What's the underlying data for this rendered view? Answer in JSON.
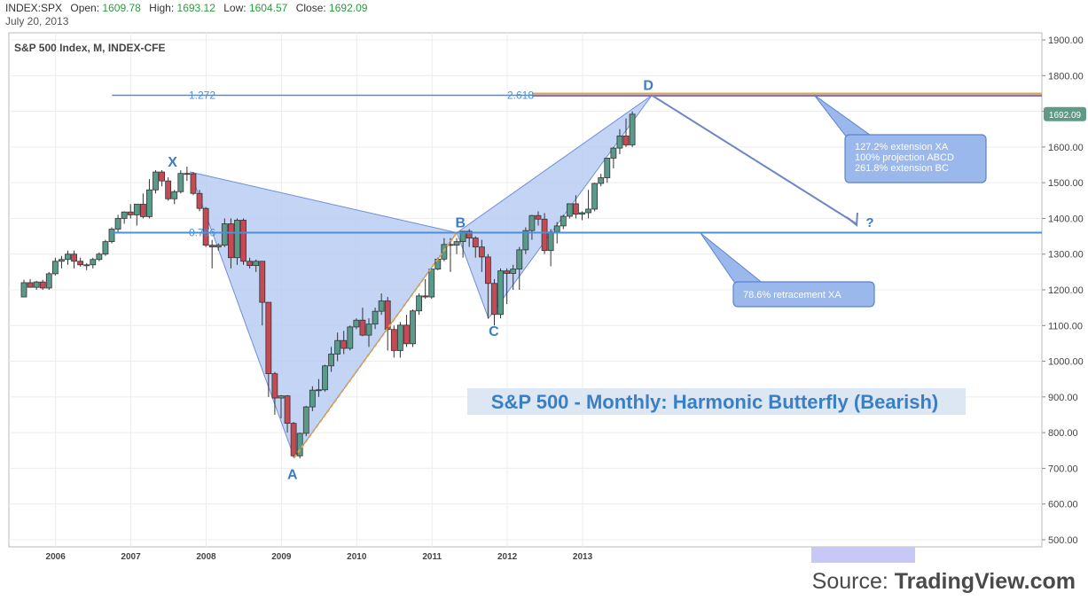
{
  "header": {
    "symbol": "INDEX:SPX",
    "open_label": "Open:",
    "open": "1609.78",
    "high_label": "High:",
    "high": "1693.12",
    "low_label": "Low:",
    "low": "1604.57",
    "close_label": "Close:",
    "close": "1692.09",
    "date": "July 20, 2013"
  },
  "source": {
    "prefix": "Source: ",
    "name": "TradingView.com"
  },
  "colors": {
    "up": "#5a9a8a",
    "down": "#c64a55",
    "pattern_fill": "#b8ccf2",
    "pattern_stroke": "#6d8fd6",
    "level_line": "#4a90d9",
    "ext_line_orange": "#e8a33c",
    "callout_fill": "#9ab8ec",
    "title_bg": "#dde6f3",
    "title_text": "#3a7fc4",
    "price_badge": "#5e9a86"
  },
  "chart_data": {
    "type": "candlestick",
    "title": "S&P 500 Index, M, INDEX-CFE",
    "annotation_title": "S&P 500 - Monthly: Harmonic Butterfly (Bearish)",
    "ylim": [
      480,
      1920
    ],
    "y_ticks": [
      "500.00",
      "600.00",
      "700.00",
      "800.00",
      "900.00",
      "1000.00",
      "1100.00",
      "1200.00",
      "1300.00",
      "1400.00",
      "1500.00",
      "1600.00",
      "1700.00",
      "1800.00",
      "1900.00"
    ],
    "x_ticks": [
      {
        "label": "2006",
        "t": 2006.0
      },
      {
        "label": "2007",
        "t": 2007.0
      },
      {
        "label": "2008",
        "t": 2008.0
      },
      {
        "label": "2009",
        "t": 2009.0
      },
      {
        "label": "2010",
        "t": 2010.0
      },
      {
        "label": "2011",
        "t": 2011.0
      },
      {
        "label": "2012",
        "t": 2012.0
      },
      {
        "label": "2013",
        "t": 2013.0
      }
    ],
    "xlim": [
      2005.38,
      2019.1
    ],
    "last_price": "1692.09",
    "candles": [
      [
        1180,
        1228,
        1180,
        1220
      ],
      [
        1220,
        1230,
        1207,
        1207
      ],
      [
        1207,
        1225,
        1200,
        1222
      ],
      [
        1222,
        1228,
        1200,
        1205
      ],
      [
        1205,
        1250,
        1200,
        1245
      ],
      [
        1245,
        1290,
        1240,
        1280
      ],
      [
        1280,
        1295,
        1260,
        1285
      ],
      [
        1285,
        1310,
        1270,
        1300
      ],
      [
        1300,
        1310,
        1260,
        1280
      ],
      [
        1280,
        1290,
        1265,
        1270
      ],
      [
        1270,
        1275,
        1255,
        1270
      ],
      [
        1270,
        1290,
        1260,
        1285
      ],
      [
        1285,
        1305,
        1280,
        1300
      ],
      [
        1300,
        1340,
        1295,
        1335
      ],
      [
        1335,
        1375,
        1330,
        1370
      ],
      [
        1370,
        1410,
        1360,
        1400
      ],
      [
        1400,
        1420,
        1385,
        1418
      ],
      [
        1418,
        1440,
        1400,
        1410
      ],
      [
        1410,
        1440,
        1380,
        1440
      ],
      [
        1440,
        1470,
        1400,
        1405
      ],
      [
        1405,
        1510,
        1400,
        1480
      ],
      [
        1480,
        1535,
        1470,
        1530
      ],
      [
        1530,
        1535,
        1490,
        1505
      ],
      [
        1505,
        1515,
        1450,
        1455
      ],
      [
        1455,
        1480,
        1440,
        1475
      ],
      [
        1475,
        1535,
        1470,
        1526
      ],
      [
        1526,
        1545,
        1505,
        1525
      ],
      [
        1525,
        1530,
        1465,
        1470
      ],
      [
        1470,
        1480,
        1420,
        1428
      ],
      [
        1428,
        1432,
        1320,
        1325
      ],
      [
        1325,
        1340,
        1260,
        1320
      ],
      [
        1320,
        1330,
        1310,
        1325
      ],
      [
        1325,
        1400,
        1320,
        1385
      ],
      [
        1385,
        1400,
        1260,
        1290
      ],
      [
        1290,
        1400,
        1270,
        1395
      ],
      [
        1395,
        1400,
        1270,
        1280
      ],
      [
        1280,
        1290,
        1260,
        1268
      ],
      [
        1268,
        1285,
        1250,
        1280
      ],
      [
        1280,
        1280,
        1100,
        1165
      ],
      [
        1165,
        1165,
        900,
        965
      ],
      [
        965,
        970,
        850,
        897
      ],
      [
        897,
        905,
        840,
        903
      ],
      [
        903,
        905,
        800,
        826
      ],
      [
        826,
        830,
        730,
        735
      ],
      [
        735,
        800,
        728,
        798
      ],
      [
        798,
        875,
        790,
        872
      ],
      [
        872,
        930,
        860,
        919
      ],
      [
        919,
        950,
        900,
        920
      ],
      [
        920,
        990,
        915,
        987
      ],
      [
        987,
        1040,
        970,
        1020
      ],
      [
        1020,
        1080,
        1000,
        1058
      ],
      [
        1058,
        1085,
        1020,
        1036
      ],
      [
        1036,
        1100,
        1030,
        1096
      ],
      [
        1096,
        1120,
        1090,
        1115
      ],
      [
        1115,
        1150,
        1070,
        1073
      ],
      [
        1073,
        1120,
        1040,
        1104
      ],
      [
        1104,
        1150,
        1090,
        1140
      ],
      [
        1140,
        1190,
        1130,
        1169
      ],
      [
        1169,
        1180,
        1030,
        1089
      ],
      [
        1089,
        1100,
        1010,
        1030
      ],
      [
        1030,
        1110,
        1010,
        1101
      ],
      [
        1101,
        1130,
        1040,
        1049
      ],
      [
        1049,
        1145,
        1040,
        1141
      ],
      [
        1141,
        1190,
        1130,
        1183
      ],
      [
        1183,
        1230,
        1175,
        1180
      ],
      [
        1180,
        1260,
        1175,
        1258
      ],
      [
        1258,
        1290,
        1255,
        1286
      ],
      [
        1286,
        1345,
        1280,
        1327
      ],
      [
        1327,
        1345,
        1250,
        1325
      ],
      [
        1325,
        1345,
        1300,
        1335
      ],
      [
        1335,
        1365,
        1290,
        1364
      ],
      [
        1364,
        1370,
        1320,
        1345
      ],
      [
        1345,
        1350,
        1290,
        1320
      ],
      [
        1320,
        1340,
        1250,
        1292
      ],
      [
        1292,
        1300,
        1120,
        1218
      ],
      [
        1218,
        1230,
        1100,
        1131
      ],
      [
        1131,
        1260,
        1120,
        1253
      ],
      [
        1253,
        1260,
        1160,
        1246
      ],
      [
        1246,
        1270,
        1200,
        1258
      ],
      [
        1258,
        1320,
        1200,
        1312
      ],
      [
        1312,
        1375,
        1300,
        1366
      ],
      [
        1366,
        1410,
        1340,
        1408
      ],
      [
        1408,
        1420,
        1380,
        1398
      ],
      [
        1398,
        1415,
        1300,
        1310
      ],
      [
        1310,
        1370,
        1266,
        1362
      ],
      [
        1362,
        1390,
        1330,
        1379
      ],
      [
        1379,
        1410,
        1370,
        1406
      ],
      [
        1406,
        1440,
        1400,
        1441
      ],
      [
        1441,
        1465,
        1400,
        1412
      ],
      [
        1412,
        1420,
        1395,
        1416
      ],
      [
        1416,
        1480,
        1400,
        1426
      ],
      [
        1426,
        1500,
        1420,
        1498
      ],
      [
        1498,
        1525,
        1490,
        1514
      ],
      [
        1514,
        1570,
        1500,
        1569
      ],
      [
        1569,
        1600,
        1540,
        1597
      ],
      [
        1597,
        1650,
        1580,
        1631
      ],
      [
        1631,
        1680,
        1600,
        1606
      ],
      [
        1606,
        1700,
        1600,
        1692
      ]
    ],
    "start_t": 2005.58,
    "month_step": 0.0833,
    "pattern": {
      "X": {
        "t": 2007.79,
        "p": 1530
      },
      "A": {
        "t": 2009.17,
        "p": 730
      },
      "B": {
        "t": 2011.33,
        "p": 1360
      },
      "C": {
        "t": 2011.75,
        "p": 1120
      },
      "D": {
        "t": 2013.92,
        "p": 1745
      }
    },
    "point_labels": [
      "X",
      "A",
      "B",
      "C",
      "D"
    ],
    "levels": [
      {
        "label": "1.272",
        "price": 1745,
        "t_start": 2006.75,
        "t_end": 2019.1
      },
      {
        "label": "0.786",
        "price": 1360,
        "t_start": 2006.75,
        "t_end": 2019.1
      }
    ],
    "level_mid_label": "2.618",
    "projection_label": "?",
    "callouts": [
      {
        "lines": [
          "127.2% extension XA",
          "100% projection ABCD",
          "261.8% extension BC"
        ]
      },
      {
        "lines": [
          "78.6% retracement XA"
        ]
      }
    ]
  }
}
